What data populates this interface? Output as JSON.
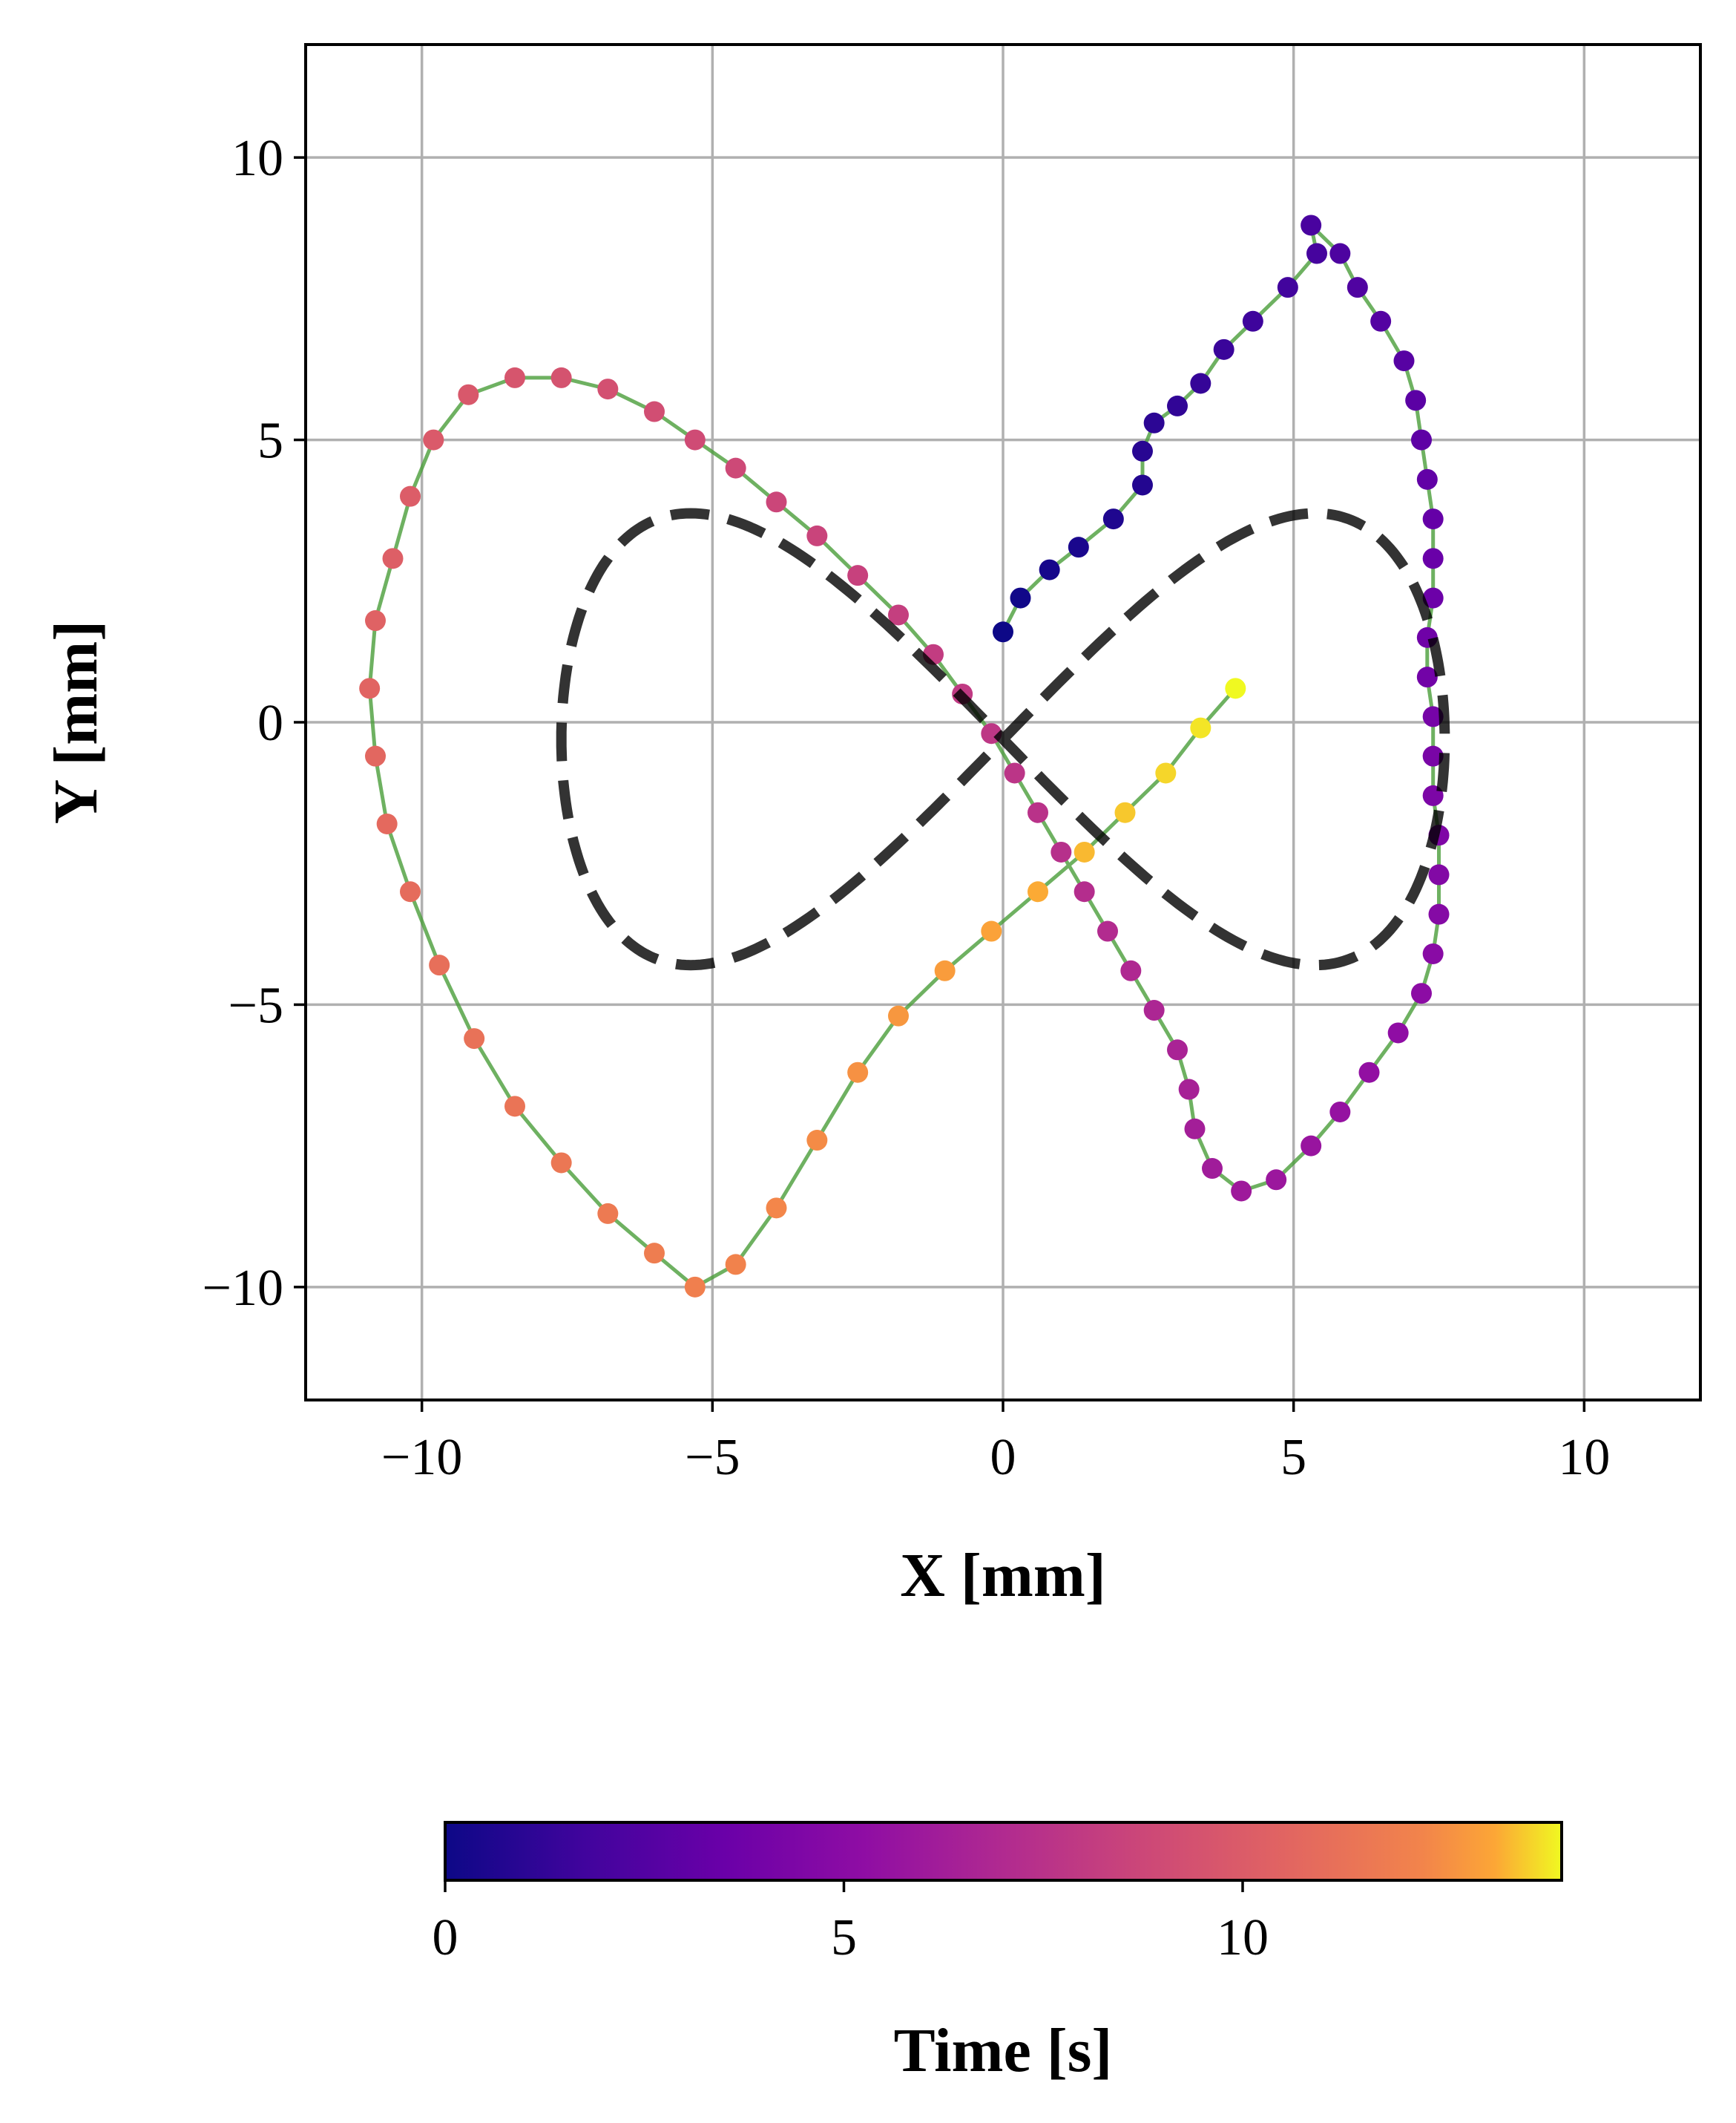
{
  "chart_data": {
    "type": "scatter",
    "xlabel": "X [mm]",
    "ylabel": "Y [mm]",
    "xlim": [
      -12,
      12
    ],
    "ylim": [
      -12,
      12
    ],
    "grid": true,
    "x_ticks": [
      -10,
      -5,
      0,
      5,
      10
    ],
    "y_ticks": [
      -10,
      -5,
      0,
      5,
      10
    ],
    "x_tick_labels": [
      "−10",
      "−5",
      "0",
      "5",
      "10"
    ],
    "y_tick_labels": [
      "−10",
      "−5",
      "0",
      "5",
      "10"
    ],
    "reference_path": {
      "name": "target figure-eight (lemniscate)",
      "shape": "lemniscate of Gerono (x = A·sin t, y = B·sin t·cos t)",
      "x_amplitude": 7.6,
      "y_amplitude": 8.0,
      "y_offset": -0.3,
      "style": "black dashed"
    },
    "trajectory": {
      "name": "measured trajectory",
      "line_color": "#4a9e3a",
      "colormap": "plasma",
      "time_range": [
        0,
        14.0
      ],
      "points": [
        [
          0.0,
          1.6,
          0.0
        ],
        [
          0.3,
          2.2,
          0.15
        ],
        [
          0.8,
          2.7,
          0.3
        ],
        [
          1.3,
          3.1,
          0.45
        ],
        [
          1.9,
          3.6,
          0.6
        ],
        [
          2.4,
          4.2,
          0.75
        ],
        [
          2.4,
          4.8,
          0.9
        ],
        [
          2.6,
          5.3,
          1.05
        ],
        [
          3.0,
          5.6,
          1.2
        ],
        [
          3.4,
          6.0,
          1.35
        ],
        [
          3.8,
          6.6,
          1.5
        ],
        [
          4.3,
          7.1,
          1.65
        ],
        [
          4.9,
          7.7,
          1.8
        ],
        [
          5.4,
          8.3,
          1.95
        ],
        [
          5.3,
          8.8,
          2.1
        ],
        [
          5.8,
          8.3,
          2.25
        ],
        [
          6.1,
          7.7,
          2.4
        ],
        [
          6.5,
          7.1,
          2.55
        ],
        [
          6.9,
          6.4,
          2.7
        ],
        [
          7.1,
          5.7,
          2.85
        ],
        [
          7.2,
          5.0,
          3.0
        ],
        [
          7.3,
          4.3,
          3.15
        ],
        [
          7.4,
          3.6,
          3.3
        ],
        [
          7.4,
          2.9,
          3.45
        ],
        [
          7.4,
          2.2,
          3.6
        ],
        [
          7.3,
          1.5,
          3.75
        ],
        [
          7.3,
          0.8,
          3.9
        ],
        [
          7.4,
          0.1,
          4.05
        ],
        [
          7.4,
          -0.6,
          4.2
        ],
        [
          7.4,
          -1.3,
          4.35
        ],
        [
          7.5,
          -2.0,
          4.5
        ],
        [
          7.5,
          -2.7,
          4.65
        ],
        [
          7.5,
          -3.4,
          4.8
        ],
        [
          7.4,
          -4.1,
          4.95
        ],
        [
          7.2,
          -4.8,
          5.1
        ],
        [
          6.8,
          -5.5,
          5.25
        ],
        [
          6.3,
          -6.2,
          5.4
        ],
        [
          5.8,
          -6.9,
          5.55
        ],
        [
          5.3,
          -7.5,
          5.7
        ],
        [
          4.7,
          -8.1,
          5.85
        ],
        [
          4.1,
          -8.3,
          6.0
        ],
        [
          3.6,
          -7.9,
          6.15
        ],
        [
          3.3,
          -7.2,
          6.3
        ],
        [
          3.2,
          -6.5,
          6.45
        ],
        [
          3.0,
          -5.8,
          6.6
        ],
        [
          2.6,
          -5.1,
          6.75
        ],
        [
          2.2,
          -4.4,
          6.9
        ],
        [
          1.8,
          -3.7,
          7.05
        ],
        [
          1.4,
          -3.0,
          7.2
        ],
        [
          1.0,
          -2.3,
          7.35
        ],
        [
          0.6,
          -1.6,
          7.5
        ],
        [
          0.2,
          -0.9,
          7.65
        ],
        [
          -0.2,
          -0.2,
          7.8
        ],
        [
          -0.7,
          0.5,
          7.95
        ],
        [
          -1.2,
          1.2,
          8.1
        ],
        [
          -1.8,
          1.9,
          8.25
        ],
        [
          -2.5,
          2.6,
          8.4
        ],
        [
          -3.2,
          3.3,
          8.55
        ],
        [
          -3.9,
          3.9,
          8.7
        ],
        [
          -4.6,
          4.5,
          8.85
        ],
        [
          -5.3,
          5.0,
          9.0
        ],
        [
          -6.0,
          5.5,
          9.15
        ],
        [
          -6.8,
          5.9,
          9.3
        ],
        [
          -7.6,
          6.1,
          9.45
        ],
        [
          -8.4,
          6.1,
          9.6
        ],
        [
          -9.2,
          5.8,
          9.75
        ],
        [
          -9.8,
          5.0,
          9.9
        ],
        [
          -10.2,
          4.0,
          10.05
        ],
        [
          -10.5,
          2.9,
          10.2
        ],
        [
          -10.8,
          1.8,
          10.35
        ],
        [
          -10.9,
          0.6,
          10.5
        ],
        [
          -10.8,
          -0.6,
          10.65
        ],
        [
          -10.6,
          -1.8,
          10.8
        ],
        [
          -10.2,
          -3.0,
          10.95
        ],
        [
          -9.7,
          -4.3,
          11.1
        ],
        [
          -9.1,
          -5.6,
          11.25
        ],
        [
          -8.4,
          -6.8,
          11.4
        ],
        [
          -7.6,
          -7.8,
          11.55
        ],
        [
          -6.8,
          -8.7,
          11.7
        ],
        [
          -6.0,
          -9.4,
          11.85
        ],
        [
          -5.3,
          -10.0,
          12.0
        ],
        [
          -4.6,
          -9.6,
          12.15
        ],
        [
          -3.9,
          -8.6,
          12.3
        ],
        [
          -3.2,
          -7.4,
          12.45
        ],
        [
          -2.5,
          -6.2,
          12.6
        ],
        [
          -1.8,
          -5.2,
          12.75
        ],
        [
          -1.0,
          -4.4,
          12.9
        ],
        [
          -0.2,
          -3.7,
          13.05
        ],
        [
          0.6,
          -3.0,
          13.2
        ],
        [
          1.4,
          -2.3,
          13.35
        ],
        [
          2.1,
          -1.6,
          13.5
        ],
        [
          2.8,
          -0.9,
          13.65
        ],
        [
          3.4,
          -0.1,
          13.8
        ],
        [
          4.0,
          0.6,
          14.0
        ]
      ]
    },
    "colorbar": {
      "label": "Time [s]",
      "colormap": "plasma",
      "range": [
        0,
        14.0
      ],
      "ticks": [
        0,
        5,
        10
      ],
      "tick_labels": [
        "0",
        "5",
        "10"
      ],
      "orientation": "horizontal",
      "placement": "below plot"
    }
  }
}
